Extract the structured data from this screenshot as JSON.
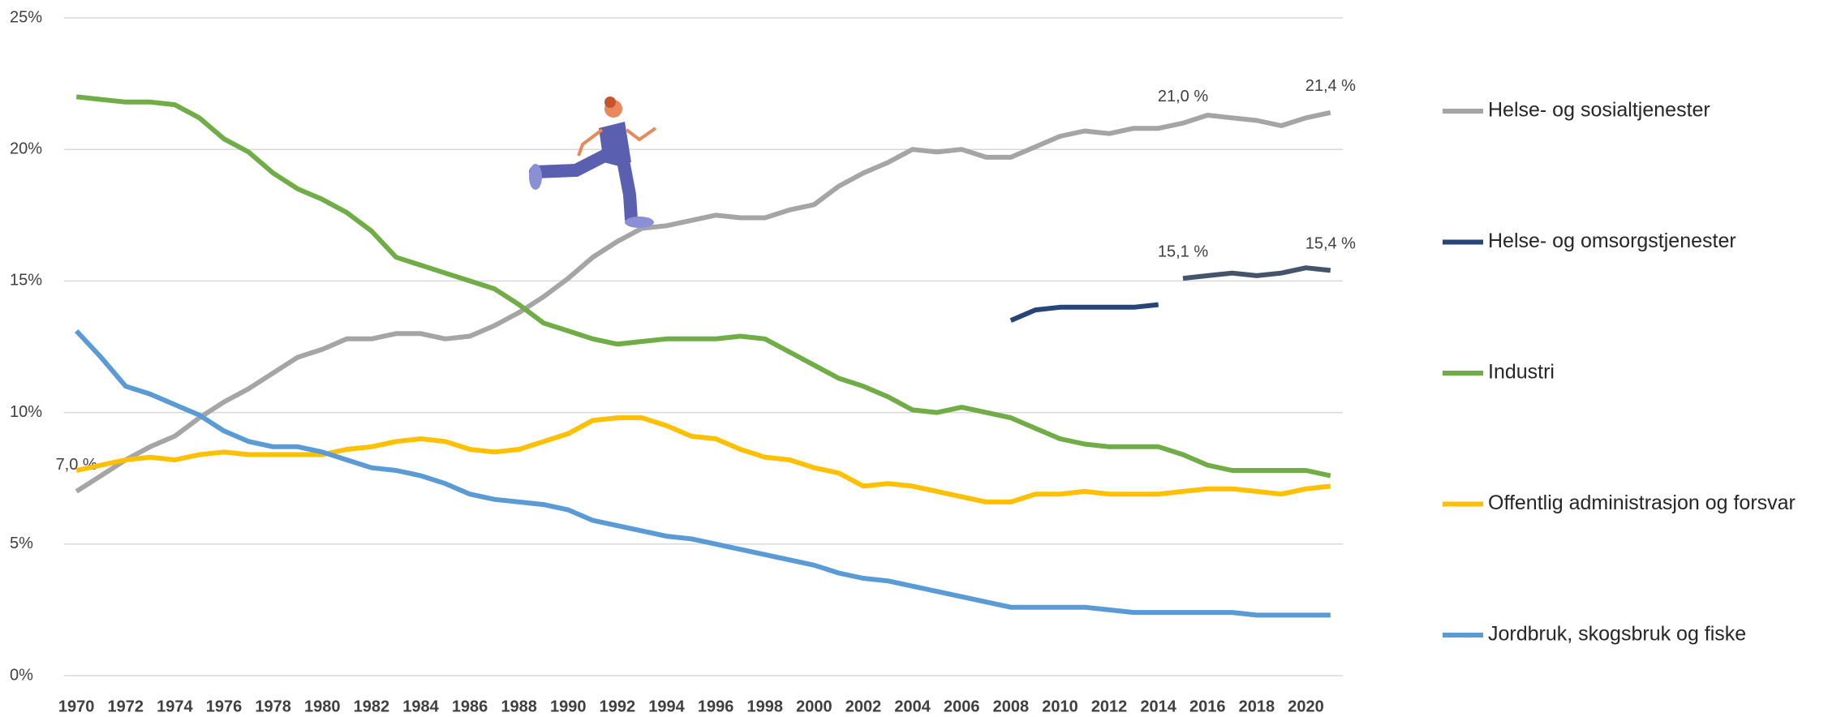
{
  "chart_data": {
    "type": "line",
    "x": [
      1970,
      1971,
      1972,
      1973,
      1974,
      1975,
      1976,
      1977,
      1978,
      1979,
      1980,
      1981,
      1982,
      1983,
      1984,
      1985,
      1986,
      1987,
      1988,
      1989,
      1990,
      1991,
      1992,
      1993,
      1994,
      1995,
      1996,
      1997,
      1998,
      1999,
      2000,
      2001,
      2002,
      2003,
      2004,
      2005,
      2006,
      2007,
      2008,
      2009,
      2010,
      2011,
      2012,
      2013,
      2014,
      2015,
      2016,
      2017,
      2018,
      2019,
      2020,
      2021
    ],
    "xlim": [
      1969.5,
      2021.5
    ],
    "xticks": [
      1970,
      1972,
      1974,
      1976,
      1978,
      1980,
      1982,
      1984,
      1986,
      1988,
      1990,
      1992,
      1994,
      1996,
      1998,
      2000,
      2002,
      2004,
      2006,
      2008,
      2010,
      2012,
      2014,
      2016,
      2018,
      2020
    ],
    "ylim": [
      0,
      25
    ],
    "yticks": [
      {
        "value": 0,
        "label": "0%"
      },
      {
        "value": 5,
        "label": "5%"
      },
      {
        "value": 10,
        "label": "10%"
      },
      {
        "value": 15,
        "label": "15%"
      },
      {
        "value": 20,
        "label": "20%"
      },
      {
        "value": 25,
        "label": "25%"
      }
    ],
    "grid": true,
    "legend": "right",
    "series": [
      {
        "name": "Helse- og sosialtjenester",
        "color": "#a5a5a5",
        "values": [
          7.0,
          7.6,
          8.2,
          8.7,
          9.1,
          9.8,
          10.4,
          10.9,
          11.5,
          12.1,
          12.4,
          12.8,
          12.8,
          13.0,
          13.0,
          12.8,
          12.9,
          13.3,
          13.8,
          14.4,
          15.1,
          15.9,
          16.5,
          17.0,
          17.1,
          17.3,
          17.5,
          17.4,
          17.4,
          17.7,
          17.9,
          18.6,
          19.1,
          19.5,
          20.0,
          19.9,
          20.0,
          19.7,
          19.7,
          20.1,
          20.5,
          20.7,
          20.6,
          20.8,
          20.8,
          21.0,
          21.3,
          21.2,
          21.1,
          20.9,
          21.2,
          21.4
        ],
        "value_labels": [
          "7,0 %",
          null,
          null,
          null,
          null,
          null,
          null,
          null,
          null,
          null,
          null,
          null,
          null,
          null,
          null,
          null,
          null,
          null,
          null,
          null,
          null,
          null,
          null,
          null,
          null,
          null,
          null,
          null,
          null,
          null,
          null,
          null,
          null,
          null,
          null,
          null,
          null,
          null,
          null,
          null,
          null,
          null,
          null,
          null,
          null,
          "21,0 %",
          null,
          null,
          null,
          null,
          null,
          "21,4 %"
        ]
      },
      {
        "name": "Helse- og omsorgstjenester",
        "color": "#264478",
        "values": [
          null,
          null,
          null,
          null,
          null,
          null,
          null,
          null,
          null,
          null,
          null,
          null,
          null,
          null,
          null,
          null,
          null,
          null,
          null,
          null,
          null,
          null,
          null,
          null,
          null,
          null,
          null,
          null,
          null,
          null,
          null,
          null,
          null,
          null,
          null,
          null,
          null,
          null,
          13.5,
          13.9,
          14.0,
          14.0,
          14.0,
          14.0,
          14.1,
          null,
          null,
          null,
          null,
          null,
          null,
          null
        ]
      },
      {
        "color": "#44546a",
        "values": [
          null,
          null,
          null,
          null,
          null,
          null,
          null,
          null,
          null,
          null,
          null,
          null,
          null,
          null,
          null,
          null,
          null,
          null,
          null,
          null,
          null,
          null,
          null,
          null,
          null,
          null,
          null,
          null,
          null,
          null,
          null,
          null,
          null,
          null,
          null,
          null,
          null,
          null,
          null,
          null,
          null,
          null,
          null,
          null,
          null,
          15.1,
          15.2,
          15.3,
          15.2,
          15.3,
          15.5,
          15.4
        ],
        "value_labels": [
          null,
          null,
          null,
          null,
          null,
          null,
          null,
          null,
          null,
          null,
          null,
          null,
          null,
          null,
          null,
          null,
          null,
          null,
          null,
          null,
          null,
          null,
          null,
          null,
          null,
          null,
          null,
          null,
          null,
          null,
          null,
          null,
          null,
          null,
          null,
          null,
          null,
          null,
          null,
          null,
          null,
          null,
          null,
          null,
          null,
          "15,1 %",
          null,
          null,
          null,
          null,
          null,
          "15,4 %"
        ]
      },
      {
        "name": "Industri",
        "color": "#70ad47",
        "values": [
          22.0,
          21.9,
          21.8,
          21.8,
          21.7,
          21.2,
          20.4,
          19.9,
          19.1,
          18.5,
          18.1,
          17.6,
          16.9,
          15.9,
          15.6,
          15.3,
          15.0,
          14.7,
          14.1,
          13.4,
          13.1,
          12.8,
          12.6,
          12.7,
          12.8,
          12.8,
          12.8,
          12.9,
          12.8,
          12.3,
          11.8,
          11.3,
          11.0,
          10.6,
          10.1,
          10.0,
          10.2,
          10.0,
          9.8,
          9.4,
          9.0,
          8.8,
          8.7,
          8.7,
          8.7,
          8.4,
          8.0,
          7.8,
          7.8,
          7.8,
          7.8,
          7.6
        ]
      },
      {
        "name": "Offentlig administrasjon og forsvar",
        "color": "#ffc000",
        "values": [
          7.8,
          8.0,
          8.2,
          8.3,
          8.2,
          8.4,
          8.5,
          8.4,
          8.4,
          8.4,
          8.4,
          8.6,
          8.7,
          8.9,
          9.0,
          8.9,
          8.6,
          8.5,
          8.6,
          8.9,
          9.2,
          9.7,
          9.8,
          9.8,
          9.5,
          9.1,
          9.0,
          8.6,
          8.3,
          8.2,
          7.9,
          7.7,
          7.2,
          7.3,
          7.2,
          7.0,
          6.8,
          6.6,
          6.6,
          6.9,
          6.9,
          7.0,
          6.9,
          6.9,
          6.9,
          7.0,
          7.1,
          7.1,
          7.0,
          6.9,
          7.1,
          7.2
        ]
      },
      {
        "name": "Jordbruk, skogsbruk og fiske",
        "color": "#5b9bd5",
        "values": [
          13.1,
          12.1,
          11.0,
          10.7,
          10.3,
          9.9,
          9.3,
          8.9,
          8.7,
          8.7,
          8.5,
          8.2,
          7.9,
          7.8,
          7.6,
          7.3,
          6.9,
          6.7,
          6.6,
          6.5,
          6.3,
          5.9,
          5.7,
          5.5,
          5.3,
          5.2,
          5.0,
          4.8,
          4.6,
          4.4,
          4.2,
          3.9,
          3.7,
          3.6,
          3.4,
          3.2,
          3.0,
          2.8,
          2.6,
          2.6,
          2.6,
          2.6,
          2.5,
          2.4,
          2.4,
          2.4,
          2.4,
          2.4,
          2.3,
          2.3,
          2.3,
          2.3
        ]
      }
    ]
  }
}
